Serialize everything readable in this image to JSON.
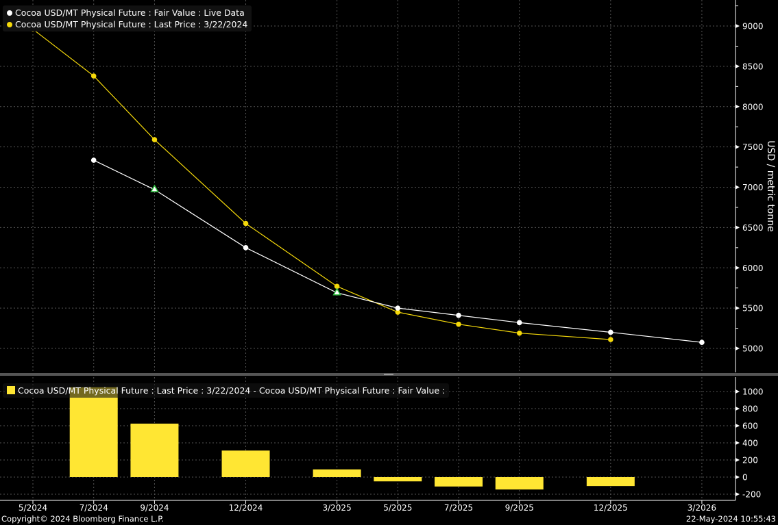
{
  "chart_data": [
    {
      "type": "line",
      "ylabel": "USD / metric tonne",
      "ylim": [
        4650,
        9250
      ],
      "yticks": [
        5000,
        5500,
        6000,
        6500,
        7000,
        7500,
        8000,
        8500,
        9000
      ],
      "axis_side": "right",
      "grid": true,
      "legend_position": "top-left",
      "categories": [
        "5/2024",
        "7/2024",
        "9/2024",
        "12/2024",
        "3/2025",
        "5/2025",
        "7/2025",
        "9/2025",
        "12/2025",
        "3/2026"
      ],
      "series": [
        {
          "name": "Cocoa USD/MT Physical Future : Fair Value : Live Data",
          "color": "#ffffff",
          "values": [
            null,
            7335,
            6970,
            6250,
            5690,
            5500,
            5410,
            5320,
            5200,
            5075
          ],
          "markers_triangle_at": [
            "9/2024",
            "3/2025"
          ]
        },
        {
          "name": "Cocoa USD/MT Physical Future : Last Price : 3/22/2024",
          "color": "#f5d90a",
          "values": [
            8960,
            8380,
            7590,
            6550,
            5770,
            5450,
            5300,
            5190,
            5110,
            null
          ]
        }
      ]
    },
    {
      "type": "bar",
      "ylim": [
        -280,
        1060
      ],
      "yticks": [
        -200,
        0,
        200,
        400,
        600,
        800,
        1000
      ],
      "grid": true,
      "legend_position": "top-left",
      "categories": [
        "5/2024",
        "7/2024",
        "9/2024",
        "12/2024",
        "3/2025",
        "5/2025",
        "7/2025",
        "9/2025",
        "12/2025",
        "3/2026"
      ],
      "series": [
        {
          "name": "Cocoa USD/MT Physical Future : Last Price : 3/22/2024 - Cocoa USD/MT Physical Future : Fair Value :",
          "color": "#ffe633",
          "values": [
            null,
            1050,
            625,
            310,
            90,
            -50,
            -110,
            -145,
            -105,
            null
          ]
        }
      ]
    }
  ],
  "footer": {
    "copyright": "Copyright© 2024 Bloomberg Finance L.P.",
    "timestamp": "22-May-2024 10:55:43"
  }
}
